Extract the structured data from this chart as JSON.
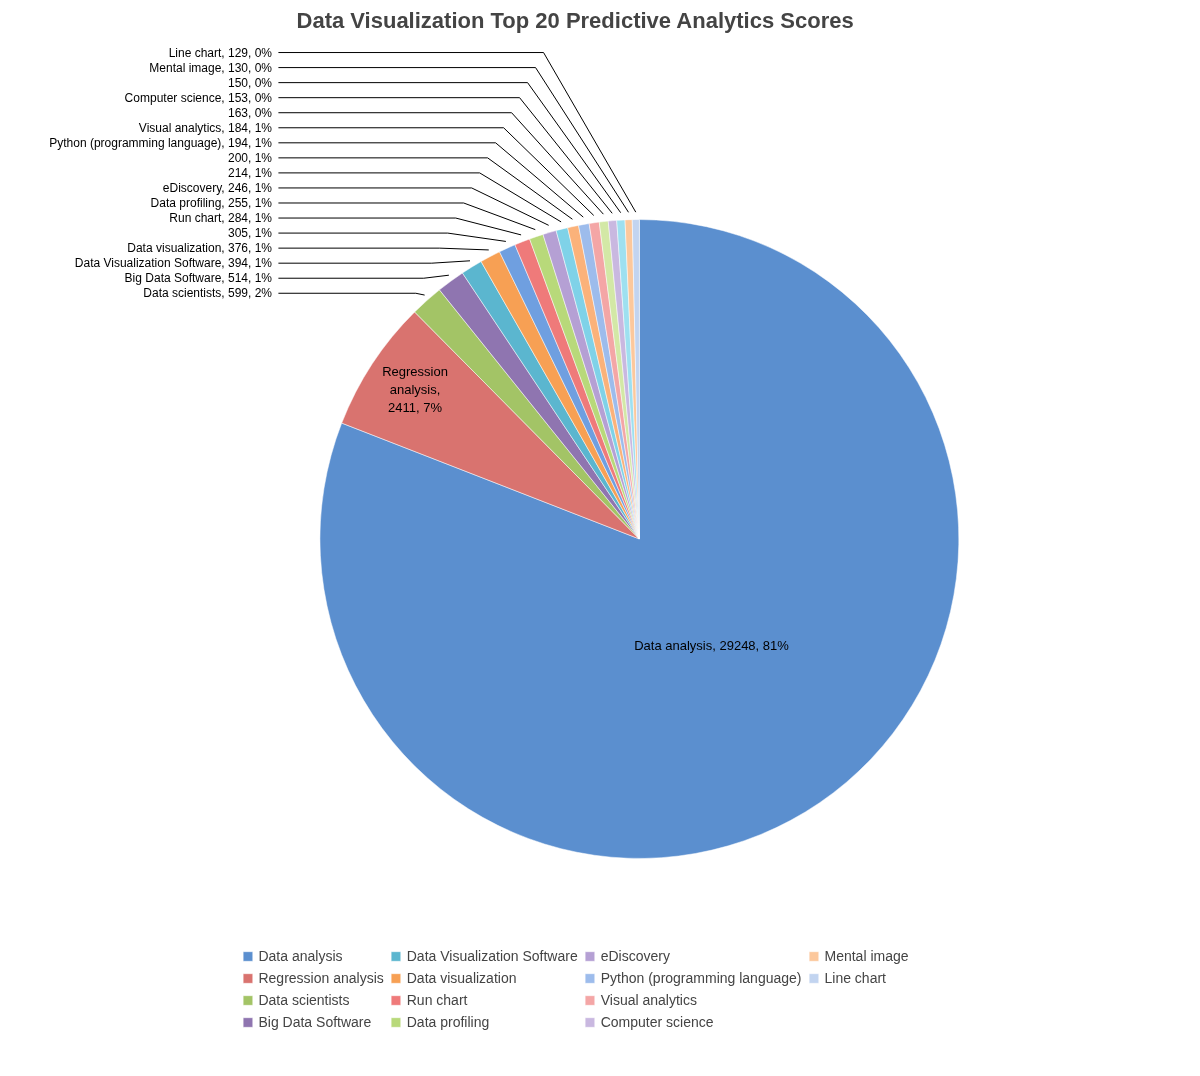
{
  "chart_data": {
    "type": "pie",
    "title": "Data Visualization Top 20 Predictive Analytics Scores",
    "categories": [
      "Data analysis",
      "Regression analysis",
      "Data scientists",
      "Big Data Software",
      "Data Visualization Software",
      "Data visualization",
      null,
      "Run chart",
      "Data profiling",
      "eDiscovery",
      null,
      null,
      "Python (programming language)",
      "Visual analytics",
      null,
      "Computer science",
      null,
      "Mental image",
      "Line chart"
    ],
    "values": [
      29248,
      2411,
      599,
      514,
      394,
      376,
      305,
      284,
      255,
      246,
      214,
      200,
      194,
      184,
      163,
      153,
      150,
      130,
      129
    ],
    "colors": [
      "#5b8fcf",
      "#d9736f",
      "#a3c466",
      "#8f75b0",
      "#5bb6cf",
      "#f7a054",
      "#6f9fe0",
      "#ef7a7a",
      "#b8d97a",
      "#b5a0d4",
      "#7fd2e8",
      "#fbb27a",
      "#9dbcec",
      "#f4a6a6",
      "#d3e8a6",
      "#c9b8e0",
      "#9ee0f0",
      "#fcc89c",
      "#c2d4f0"
    ],
    "value_labels": [
      "Data analysis, 29248, 81%",
      "Regression analysis, 2411, 7%",
      "Data scientists, 599, 2%",
      "Big Data Software, 514, 1%",
      "Data Visualization Software, 394, 1%",
      "Data visualization, 376, 1%",
      "305, 1%",
      "Run chart, 284, 1%",
      "Data profiling, 255, 1%",
      "eDiscovery, 246, 1%",
      "214, 1%",
      "200, 1%",
      "Python (programming language), 194, 1%",
      "Visual analytics, 184, 1%",
      "163, 0%",
      "Computer science, 153, 0%",
      "150, 0%",
      "Mental image, 130, 0%",
      "Line chart, 129, 0%"
    ],
    "legend": "bottom"
  }
}
